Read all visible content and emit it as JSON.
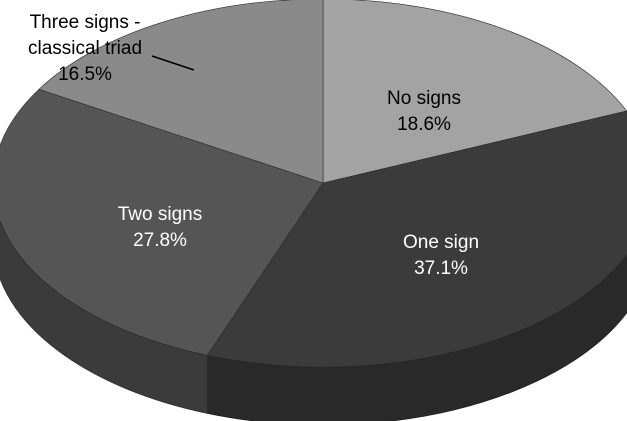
{
  "chart_data": {
    "type": "pie",
    "style": "3d",
    "slices": [
      {
        "label": "No signs",
        "percent_label": "18.6%",
        "value": 18.6,
        "color": "#a3a3a3",
        "label_color": "#000000"
      },
      {
        "label": "One sign",
        "percent_label": "37.1%",
        "value": 37.1,
        "color": "#3b3b3b",
        "label_color": "#ffffff"
      },
      {
        "label": "Two signs",
        "percent_label": "27.8%",
        "value": 27.8,
        "color": "#555555",
        "label_color": "#ffffff"
      },
      {
        "label": "Three signs -",
        "label_line2": "classical triad",
        "percent_label": "16.5%",
        "value": 16.5,
        "color": "#8a8a8a",
        "label_color": "#000000"
      }
    ]
  }
}
